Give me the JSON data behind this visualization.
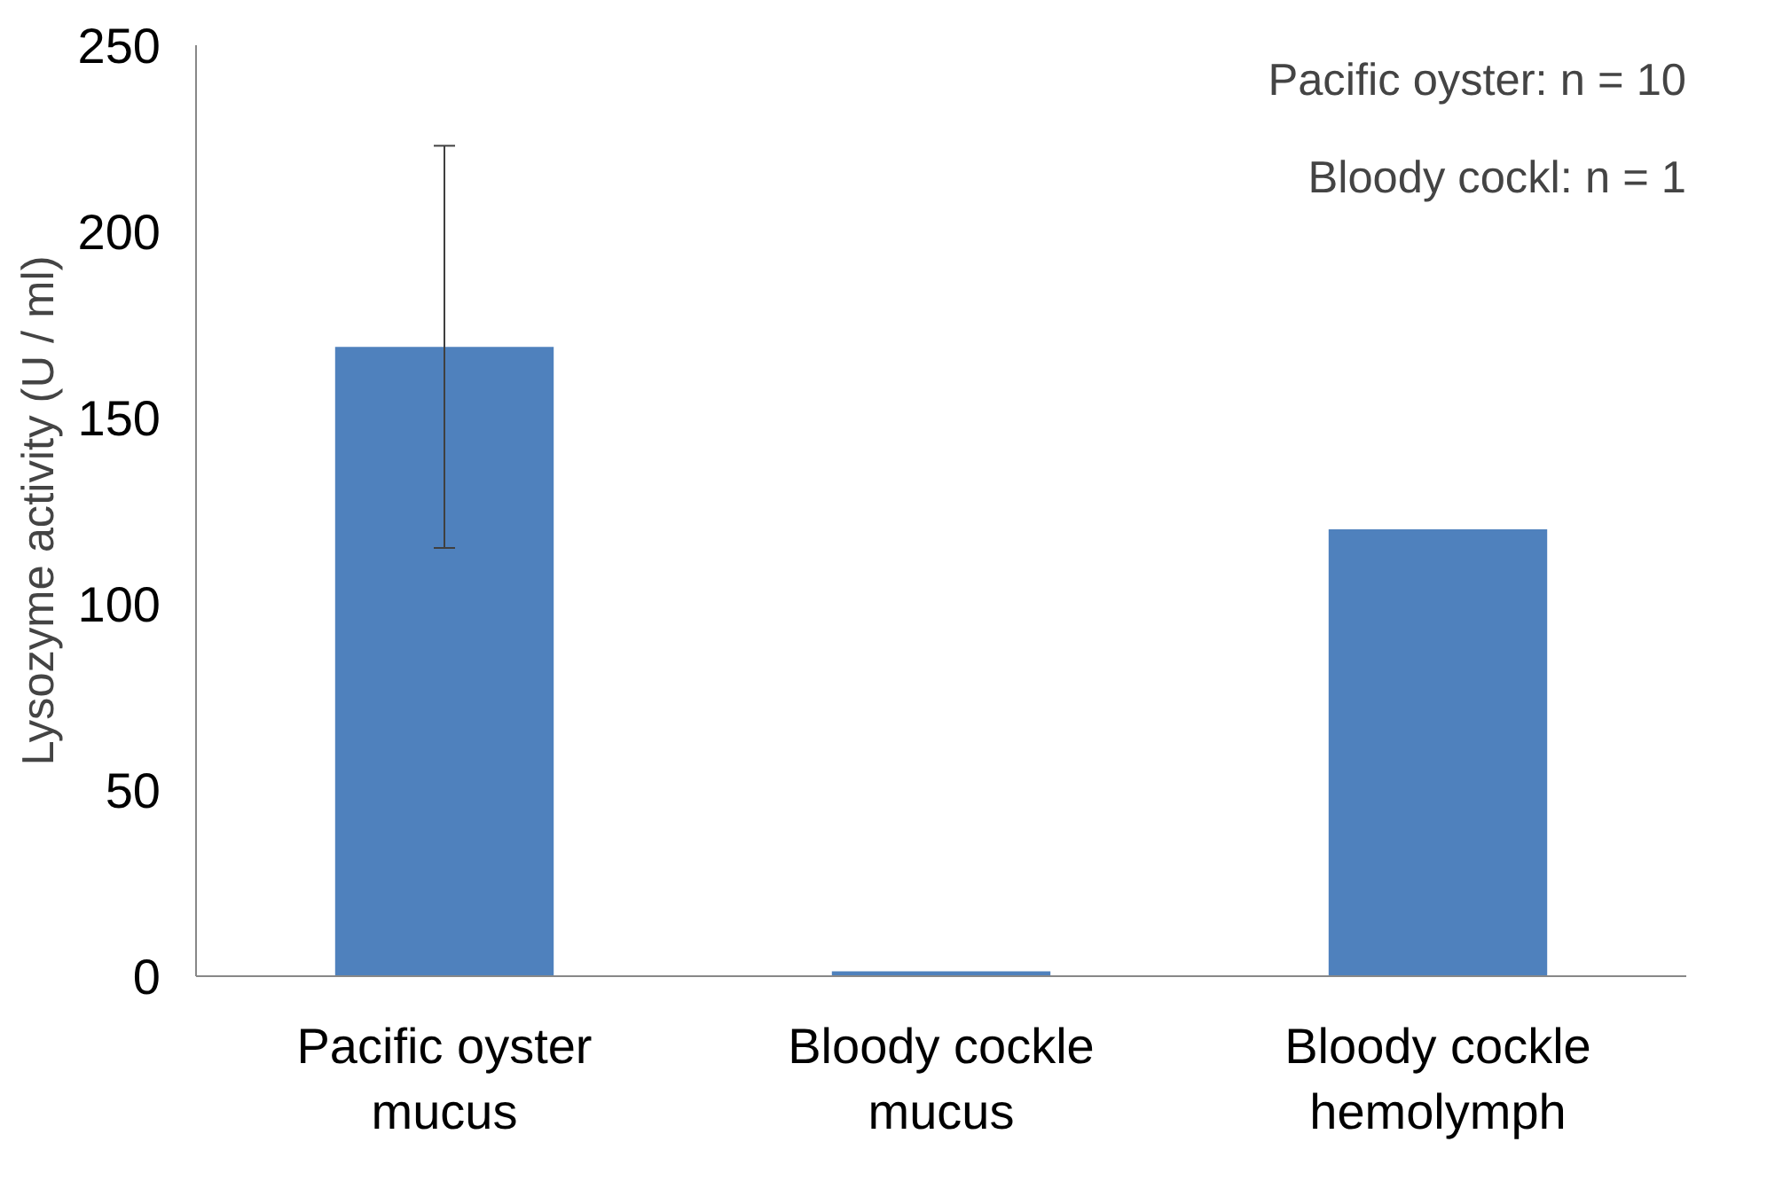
{
  "chart_data": {
    "type": "bar",
    "ylabel": "Lysozyme activity (U / ml)",
    "categories": [
      "Pacific oyster\nmucus",
      "Bloody cockle\nmucus",
      "Bloody cockle\nhemolymph"
    ],
    "values": [
      169,
      1.3,
      120
    ],
    "errors": [
      54,
      null,
      null
    ],
    "color": "#4f81bd",
    "ylim": [
      0,
      250
    ],
    "yticks": [
      0,
      50,
      100,
      150,
      200,
      250
    ],
    "grid": false,
    "annotations": [
      "Pacific oyster: n = 10",
      "Bloody cockl: n = 1"
    ]
  }
}
